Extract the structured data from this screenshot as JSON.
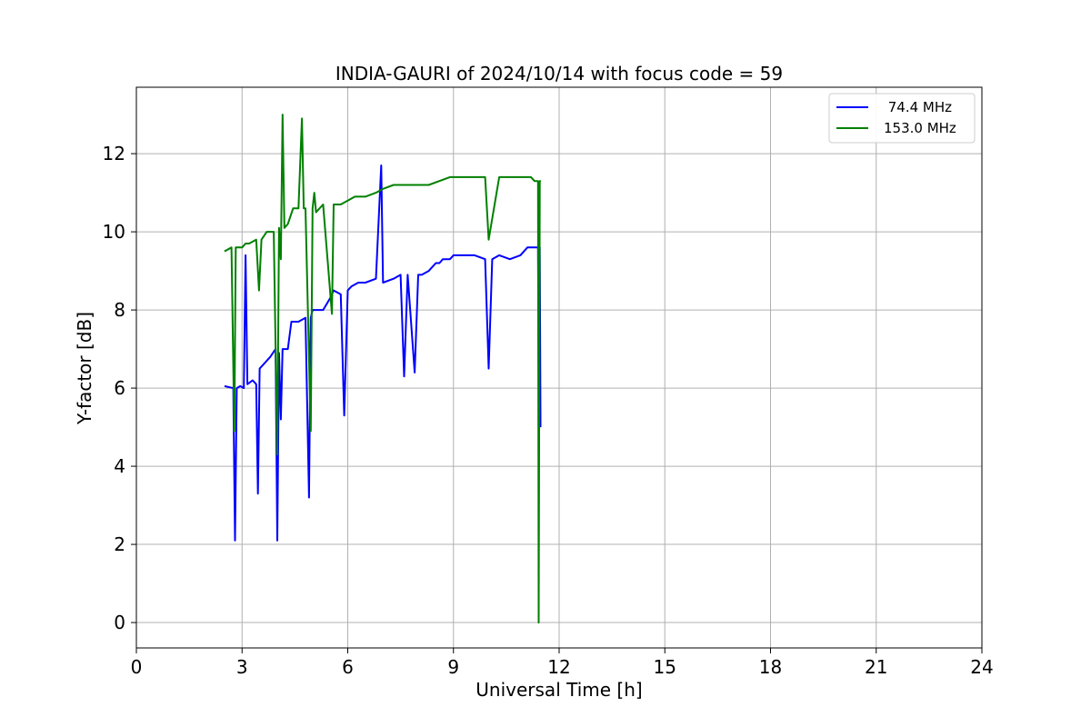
{
  "chart_data": {
    "type": "line",
    "title": "INDIA-GAURI of 2024/10/14 with focus code = 59",
    "xlabel": "Universal Time [h]",
    "ylabel": "Y-factor [dB]",
    "xlim": [
      0,
      24
    ],
    "ylim": [
      -0.65,
      13.7
    ],
    "xticks": [
      0,
      3,
      6,
      9,
      12,
      15,
      18,
      21,
      24
    ],
    "yticks": [
      0,
      2,
      4,
      6,
      8,
      10,
      12
    ],
    "grid": true,
    "legend_position": "top-right",
    "series": [
      {
        "name": " 74.4 MHz",
        "color": "#0000ff",
        "x": [
          2.5,
          2.75,
          2.8,
          2.85,
          2.95,
          3.05,
          3.1,
          3.15,
          3.3,
          3.4,
          3.45,
          3.5,
          3.6,
          3.8,
          3.95,
          4.0,
          4.05,
          4.1,
          4.15,
          4.3,
          4.4,
          4.6,
          4.8,
          4.9,
          4.95,
          5.0,
          5.1,
          5.3,
          5.5,
          5.6,
          5.8,
          5.9,
          6.0,
          6.1,
          6.3,
          6.5,
          6.8,
          6.95,
          7.0,
          7.3,
          7.5,
          7.6,
          7.7,
          7.9,
          8.0,
          8.1,
          8.3,
          8.5,
          8.6,
          8.7,
          8.9,
          9.0,
          9.3,
          9.6,
          9.9,
          10.0,
          10.1,
          10.3,
          10.6,
          10.9,
          11.1,
          11.2,
          11.3,
          11.4,
          11.42,
          11.45,
          11.47
        ],
        "y": [
          6.05,
          6.0,
          2.1,
          6.0,
          6.05,
          6.0,
          9.4,
          6.1,
          6.2,
          6.1,
          3.3,
          6.5,
          6.6,
          6.8,
          7.0,
          2.1,
          6.9,
          5.2,
          7.0,
          7.0,
          7.7,
          7.7,
          7.8,
          3.2,
          7.8,
          8.0,
          8.0,
          8.0,
          8.3,
          8.5,
          8.4,
          5.3,
          8.5,
          8.6,
          8.7,
          8.7,
          8.8,
          11.7,
          8.7,
          8.8,
          8.9,
          6.3,
          8.9,
          6.4,
          8.9,
          8.9,
          9.0,
          9.2,
          9.2,
          9.3,
          9.3,
          9.4,
          9.4,
          9.4,
          9.3,
          6.5,
          9.3,
          9.4,
          9.3,
          9.4,
          9.6,
          9.6,
          9.6,
          9.6,
          6.5,
          9.6,
          5.0
        ]
      },
      {
        "name": "153.0 MHz",
        "color": "#008000",
        "x": [
          2.5,
          2.7,
          2.78,
          2.82,
          2.9,
          3.0,
          3.1,
          3.2,
          3.4,
          3.48,
          3.55,
          3.7,
          3.9,
          4.0,
          4.05,
          4.1,
          4.15,
          4.2,
          4.3,
          4.45,
          4.6,
          4.7,
          4.75,
          4.8,
          4.95,
          5.0,
          5.05,
          5.1,
          5.3,
          5.55,
          5.6,
          5.8,
          6.0,
          6.2,
          6.5,
          6.8,
          7.0,
          7.3,
          7.6,
          7.8,
          8.0,
          8.3,
          8.6,
          8.9,
          9.0,
          9.3,
          9.6,
          9.9,
          10.0,
          10.3,
          10.6,
          10.9,
          11.2,
          11.3,
          11.4,
          11.42,
          11.45,
          11.48
        ],
        "y": [
          9.5,
          9.6,
          4.9,
          9.6,
          9.6,
          9.6,
          9.7,
          9.7,
          9.8,
          8.5,
          9.8,
          10.0,
          10.0,
          4.3,
          10.1,
          9.3,
          13.0,
          10.1,
          10.2,
          10.6,
          10.6,
          12.9,
          10.6,
          10.6,
          4.9,
          10.6,
          11.0,
          10.5,
          10.7,
          7.9,
          10.7,
          10.7,
          10.8,
          10.9,
          10.9,
          11.0,
          11.1,
          11.2,
          11.2,
          11.2,
          11.2,
          11.2,
          11.3,
          11.4,
          11.4,
          11.4,
          11.4,
          11.4,
          9.8,
          11.4,
          11.4,
          11.4,
          11.4,
          11.3,
          11.3,
          0.0,
          11.3,
          11.3
        ]
      }
    ]
  }
}
